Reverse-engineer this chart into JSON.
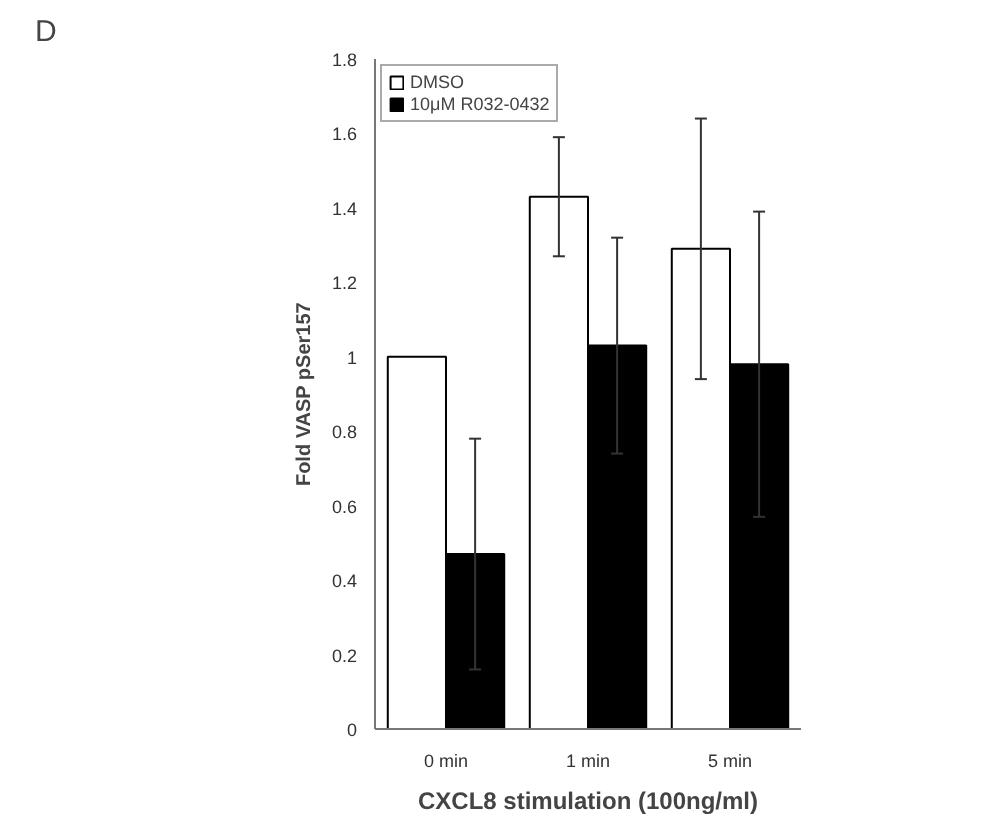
{
  "chart_data": {
    "type": "bar",
    "annotations": [
      "D"
    ],
    "xlabel": "CXCL8 stimulation (100ng/ml)",
    "ylabel": "Fold VASP pSer157",
    "categories": [
      "0 min",
      "1 min",
      "5 min"
    ],
    "series": [
      {
        "name": "DMSO",
        "color": "#ffffff",
        "values": [
          1,
          1.43,
          1.29
        ],
        "errors": [
          null,
          0.16,
          0.35
        ]
      },
      {
        "name": "10μM R032-0432",
        "color": "#000000",
        "values": [
          0.47,
          1.03,
          0.98
        ],
        "errors": [
          0.31,
          0.29,
          0.41
        ]
      }
    ],
    "ylim": [
      0,
      1.8
    ],
    "yticks": [
      0,
      0.2,
      0.4,
      0.6,
      0.8,
      1,
      1.2,
      1.4,
      1.6,
      1.8
    ],
    "grid": false,
    "legend": "top left"
  }
}
